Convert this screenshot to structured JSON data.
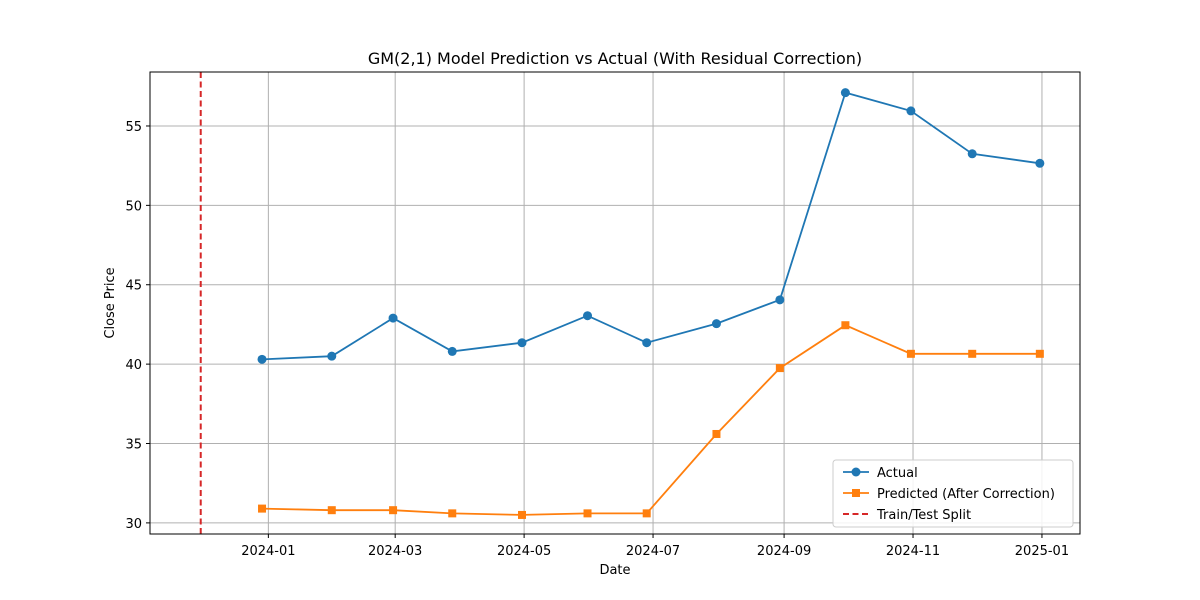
{
  "chart_data": {
    "type": "line",
    "title": "GM(2,1) Model Prediction vs Actual (With Residual Correction)",
    "xlabel": "Date",
    "ylabel": "Close Price",
    "x_range": [
      "2023-11-06",
      "2025-01-19"
    ],
    "ylim": [
      29.3,
      58.4
    ],
    "x_ticks": [
      "2024-01",
      "2024-03",
      "2024-05",
      "2024-07",
      "2024-09",
      "2024-11",
      "2025-01"
    ],
    "y_ticks": [
      30,
      35,
      40,
      45,
      50,
      55
    ],
    "grid": true,
    "legend_position": "lower-right",
    "split_date": "2023-11-30",
    "split_label": "Train/Test Split",
    "x": [
      "2023-12-29",
      "2024-01-31",
      "2024-02-29",
      "2024-03-28",
      "2024-04-30",
      "2024-05-31",
      "2024-06-28",
      "2024-07-31",
      "2024-08-30",
      "2024-09-30",
      "2024-10-31",
      "2024-11-29",
      "2024-12-31"
    ],
    "series": [
      {
        "name": "Actual",
        "color": "#1f77b4",
        "marker": "circle",
        "values": [
          40.3,
          40.5,
          42.9,
          40.8,
          41.35,
          43.05,
          41.35,
          42.55,
          44.05,
          57.1,
          55.95,
          53.25,
          52.65
        ]
      },
      {
        "name": "Predicted (After Correction)",
        "color": "#ff7f0e",
        "marker": "square",
        "values": [
          30.9,
          30.8,
          30.8,
          30.6,
          30.5,
          30.6,
          30.6,
          35.6,
          39.75,
          42.45,
          40.65,
          40.65,
          40.65
        ]
      }
    ],
    "split_color": "#d62728"
  }
}
